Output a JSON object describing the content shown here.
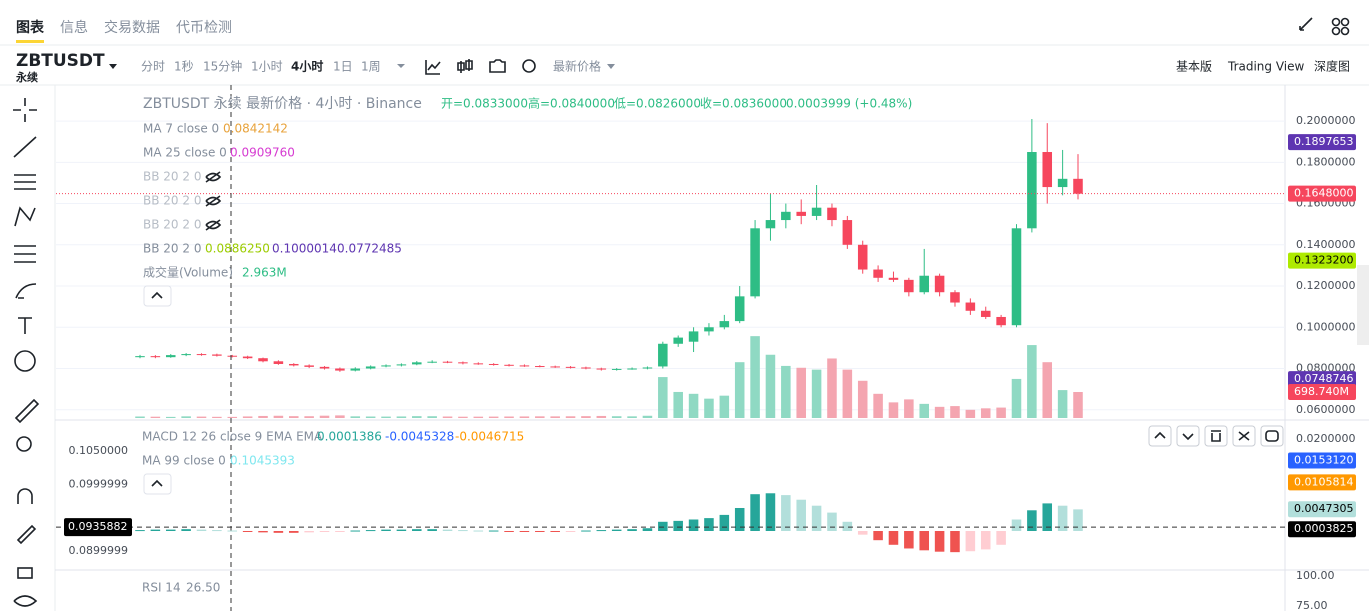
{
  "tabs": [
    "图表",
    "信息",
    "交易数据",
    "代币检测"
  ],
  "symbol": "ZBTUSDT",
  "contract": "永续",
  "intervals": [
    "分时",
    "1秒",
    "15分钟",
    "1小时",
    "4小时",
    "1日",
    "1周"
  ],
  "price_type": "最新价格",
  "views": [
    "基本版",
    "Trading View",
    "深度图"
  ],
  "legend": {
    "title": "ZBTUSDT 永续 最新价格 · 4小时 · Binance",
    "ohlc": [
      "开=0.0833000",
      "高=0.0840000",
      "低=0.0826000",
      "收=0.0836000"
    ],
    "change": "0.0003999 (+0.48%)",
    "ma7": {
      "label": "MA 7 close 0",
      "value": "0.0842142"
    },
    "ma25": {
      "label": "MA 25 close 0",
      "value": "0.0909760"
    },
    "bb_hidden": [
      "BB 20 2 0",
      "BB 20 2 0",
      "BB 20 2 0"
    ],
    "bb": {
      "label": "BB 20 2 0",
      "values": [
        "0.0886250",
        "0.1000014",
        "0.0772485"
      ]
    },
    "volume": {
      "label": "成交量(Volume)",
      "value": "2.963M"
    }
  },
  "macd_legend": {
    "label": "MACD 12 26 close 9 EMA EMA",
    "values": [
      "0.0001386",
      "-0.0045328",
      "-0.0046715"
    ]
  },
  "ma99_legend": {
    "label": "MA 99 close 0",
    "value": "0.1045393"
  },
  "rsi_legend": {
    "label": "RSI 14",
    "value": "26.50"
  },
  "main": {
    "ylim": [
      0.056,
      0.2175
    ],
    "vlim": [
      0,
      8950
    ],
    "yticks": [
      {
        "value": 0.2,
        "label": "0.2000000"
      },
      {
        "value": 0.18,
        "label": "0.1800000"
      },
      {
        "value": 0.16,
        "label": "0.1600000"
      },
      {
        "value": 0.14,
        "label": "0.1400000"
      },
      {
        "value": 0.12,
        "label": "0.1200000"
      },
      {
        "value": 0.1,
        "label": "0.1000000"
      },
      {
        "value": 0.08,
        "label": "0.0800000"
      },
      {
        "value": 0.06,
        "label": "0.0600000"
      }
    ],
    "badges": [
      {
        "value": 0.1897653,
        "label": "0.1897653",
        "color": "#5e35b1"
      },
      {
        "value": 0.1648,
        "label": "0.1648000",
        "color": "#f6465d"
      },
      {
        "value": 0.13232,
        "label": "0.1323200",
        "color": "#aeea00"
      },
      {
        "value": 0.0748746,
        "label": "0.0748746",
        "color": "#5e35b1"
      }
    ],
    "volume_badge": {
      "value": 698.74,
      "label": "698.740M",
      "color": "#f6465d"
    },
    "candles": [
      [
        0.0855,
        0.0866,
        0.085,
        0.086
      ],
      [
        0.086,
        0.0865,
        0.085,
        0.0855
      ],
      [
        0.0855,
        0.087,
        0.0852,
        0.0865
      ],
      [
        0.0865,
        0.0875,
        0.086,
        0.087
      ],
      [
        0.087,
        0.0874,
        0.0862,
        0.0868
      ],
      [
        0.0868,
        0.0872,
        0.0858,
        0.0862
      ],
      [
        0.0862,
        0.0866,
        0.0854,
        0.0858
      ],
      [
        0.0858,
        0.0862,
        0.0846,
        0.085
      ],
      [
        0.085,
        0.0853,
        0.083,
        0.0835
      ],
      [
        0.0835,
        0.084,
        0.0818,
        0.0822
      ],
      [
        0.0822,
        0.0826,
        0.081,
        0.0815
      ],
      [
        0.0815,
        0.082,
        0.0802,
        0.0808
      ],
      [
        0.0808,
        0.0812,
        0.0795,
        0.08
      ],
      [
        0.08,
        0.0805,
        0.0784,
        0.079
      ],
      [
        0.079,
        0.0806,
        0.0786,
        0.08
      ],
      [
        0.08,
        0.0815,
        0.0796,
        0.081
      ],
      [
        0.081,
        0.082,
        0.0806,
        0.0815
      ],
      [
        0.0815,
        0.0825,
        0.081,
        0.082
      ],
      [
        0.082,
        0.0836,
        0.0816,
        0.083
      ],
      [
        0.083,
        0.084,
        0.0826,
        0.0833
      ],
      [
        0.0833,
        0.0837,
        0.0826,
        0.083
      ],
      [
        0.083,
        0.0834,
        0.082,
        0.0825
      ],
      [
        0.0825,
        0.083,
        0.0818,
        0.0822
      ],
      [
        0.0822,
        0.0826,
        0.0814,
        0.0818
      ],
      [
        0.0818,
        0.0822,
        0.081,
        0.0815
      ],
      [
        0.0815,
        0.082,
        0.0808,
        0.0812
      ],
      [
        0.0812,
        0.0816,
        0.0806,
        0.081
      ],
      [
        0.081,
        0.0814,
        0.0803,
        0.0808
      ],
      [
        0.0808,
        0.0812,
        0.08,
        0.0805
      ],
      [
        0.0805,
        0.0809,
        0.0796,
        0.08
      ],
      [
        0.08,
        0.0804,
        0.079,
        0.0795
      ],
      [
        0.0795,
        0.0802,
        0.079,
        0.0798
      ],
      [
        0.0798,
        0.0805,
        0.0794,
        0.08
      ],
      [
        0.08,
        0.081,
        0.0796,
        0.0805
      ],
      [
        0.081,
        0.093,
        0.08,
        0.092
      ],
      [
        0.092,
        0.096,
        0.0905,
        0.095
      ],
      [
        0.093,
        0.1,
        0.088,
        0.098
      ],
      [
        0.098,
        0.102,
        0.096,
        0.1
      ],
      [
        0.1,
        0.106,
        0.099,
        0.103
      ],
      [
        0.103,
        0.12,
        0.102,
        0.115
      ],
      [
        0.115,
        0.152,
        0.114,
        0.148
      ],
      [
        0.148,
        0.165,
        0.142,
        0.152
      ],
      [
        0.152,
        0.16,
        0.148,
        0.156
      ],
      [
        0.156,
        0.162,
        0.15,
        0.154
      ],
      [
        0.154,
        0.169,
        0.152,
        0.158
      ],
      [
        0.158,
        0.16,
        0.149,
        0.152
      ],
      [
        0.152,
        0.154,
        0.138,
        0.14
      ],
      [
        0.14,
        0.142,
        0.126,
        0.128
      ],
      [
        0.128,
        0.13,
        0.122,
        0.124
      ],
      [
        0.124,
        0.127,
        0.122,
        0.123
      ],
      [
        0.123,
        0.124,
        0.115,
        0.117
      ],
      [
        0.117,
        0.138,
        0.116,
        0.125
      ],
      [
        0.125,
        0.126,
        0.115,
        0.117
      ],
      [
        0.117,
        0.118,
        0.11,
        0.112
      ],
      [
        0.112,
        0.114,
        0.106,
        0.108
      ],
      [
        0.108,
        0.11,
        0.104,
        0.105
      ],
      [
        0.105,
        0.106,
        0.1,
        0.101
      ],
      [
        0.101,
        0.15,
        0.1,
        0.148
      ],
      [
        0.148,
        0.201,
        0.146,
        0.185
      ],
      [
        0.185,
        0.199,
        0.16,
        0.168
      ],
      [
        0.168,
        0.186,
        0.164,
        0.172
      ],
      [
        0.172,
        0.184,
        0.162,
        0.1648
      ]
    ],
    "volumes": [
      40,
      35,
      30,
      45,
      38,
      32,
      30,
      42,
      55,
      60,
      50,
      48,
      62,
      70,
      45,
      40,
      38,
      42,
      50,
      48,
      40,
      35,
      36,
      38,
      40,
      42,
      45,
      44,
      46,
      50,
      55,
      48,
      45,
      60,
      1100,
      700,
      650,
      520,
      600,
      1500,
      2200,
      1700,
      1400,
      1350,
      1300,
      1600,
      1300,
      1000,
      650,
      420,
      500,
      380,
      300,
      320,
      220,
      260,
      280,
      1050,
      1960,
      1500,
      750,
      698.74
    ]
  },
  "macd": {
    "y2lim": [
      -0.00848,
      0.02413
    ],
    "ylim": [
      0.08716,
      0.10963
    ],
    "y2ticks": [
      {
        "value": 0.02,
        "label": "0.0200000"
      }
    ],
    "y2badges": [
      {
        "value": 0.015312,
        "label": "0.0153120",
        "color": "#2962ff"
      },
      {
        "value": 0.0105814,
        "label": "0.0105814",
        "color": "#ff9800"
      },
      {
        "value": 0.0047305,
        "label": "0.0047305",
        "color": "#b2dfdb"
      },
      {
        "value": 0.0003825,
        "label": "0.0003825",
        "color": "#000000"
      }
    ],
    "yticks": [
      {
        "value": 0.105,
        "label": "0.1050000"
      },
      {
        "value": 0.0999999,
        "label": "0.0999999"
      },
      {
        "value": 0.0899999,
        "label": "0.0899999"
      }
    ],
    "ybadge": {
      "value": 0.0935882,
      "label": "0.0935882",
      "color": "#000000"
    },
    "histogram": [
      0.0002,
      0.0003,
      0.0003,
      0.0004,
      0.0003,
      0.0002,
      0.0001,
      -0.0001,
      -0.0003,
      -0.0004,
      -0.0004,
      -0.0003,
      -0.0002,
      -0.0001,
      0.0001,
      0.0002,
      0.0003,
      0.0003,
      0.0004,
      0.0004,
      0.0003,
      0.0002,
      0.0001,
      0.0001,
      -0.0001,
      -0.0001,
      -0.0002,
      -0.0002,
      -0.0001,
      0.0001,
      0.0002,
      0.0003,
      0.0004,
      0.0006,
      0.002,
      0.0022,
      0.0025,
      0.0028,
      0.0035,
      0.005,
      0.008,
      0.0082,
      0.0078,
      0.0068,
      0.0055,
      0.004,
      0.002,
      -0.0008,
      -0.002,
      -0.003,
      -0.0038,
      -0.0042,
      -0.0045,
      -0.0046,
      -0.0044,
      -0.004,
      -0.003,
      0.0025,
      0.0045,
      0.006,
      0.0055,
      0.0047
    ]
  },
  "rsi": {
    "ylim": [
      70.8,
      105
    ],
    "yticks": [
      {
        "value": 100,
        "label": "100.00"
      },
      {
        "value": 75,
        "label": "75.00"
      }
    ]
  }
}
